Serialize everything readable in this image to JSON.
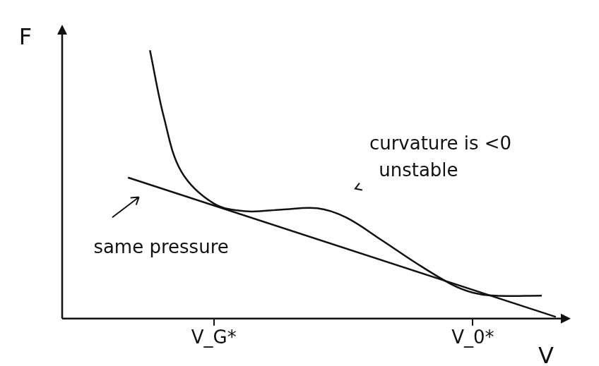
{
  "chart_data": {
    "type": "line",
    "x_label": "V",
    "y_label": "F",
    "annotations": [
      "curvature is <0",
      "unstable",
      "same pressure"
    ],
    "xlim": [
      0,
      16
    ],
    "ylim": [
      0,
      8.5
    ],
    "xticks": [
      {
        "value": 4.84,
        "label": "V_G*"
      },
      {
        "value": 13.1,
        "label": "V_0*"
      }
    ],
    "yticks": [],
    "tick_labels": "x",
    "grid": false,
    "series": [
      {
        "color": "#111111",
        "line_style": "solid",
        "x": [
          2.8,
          3.25,
          3.8,
          4.84,
          5.86,
          7.0,
          8.14,
          9.05,
          10.2,
          11.3,
          12.45,
          13.1,
          13.8,
          15.3
        ],
        "values": [
          7.95,
          5.95,
          4.36,
          3.41,
          3.18,
          3.23,
          3.27,
          3.0,
          2.32,
          1.64,
          1.0,
          0.77,
          0.68,
          0.68
        ]
      },
      {
        "color": "#111111",
        "line_style": "solid",
        "x": [
          2.1,
          15.75
        ],
        "values": [
          4.18,
          0.05
        ]
      }
    ]
  }
}
